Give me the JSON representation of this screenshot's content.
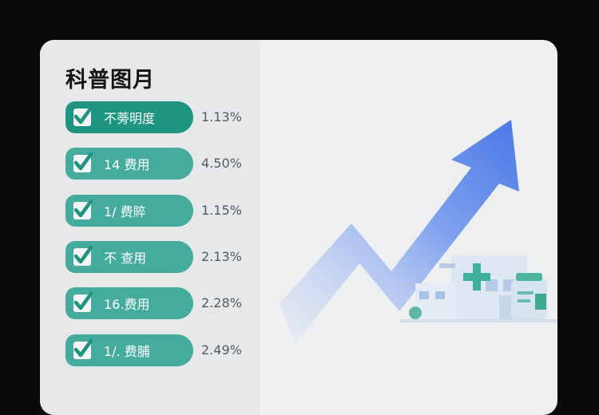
{
  "title": "科普图月",
  "items": [
    {
      "label": "不蒡明度",
      "value": "1.13%",
      "checked": true
    },
    {
      "label": "14 费用",
      "value": "4.50%",
      "checked": true
    },
    {
      "label": "1/ 费賥",
      "value": "1.15%",
      "checked": true
    },
    {
      "label": "不 查用",
      "value": "2.13%",
      "checked": true
    },
    {
      "label": "16.费用",
      "value": "2.28%",
      "checked": true
    },
    {
      "label": "1/. 费脯",
      "value": "2.49%",
      "checked": true
    }
  ],
  "colors": {
    "accent": "#45ab9c",
    "accent_dark": "#1f9480",
    "arrow": "#4f7fe6"
  },
  "icons": [
    "checkbox-checked-icon",
    "rising-arrow-icon",
    "hospital-icon",
    "medicine-bottle-icon"
  ]
}
